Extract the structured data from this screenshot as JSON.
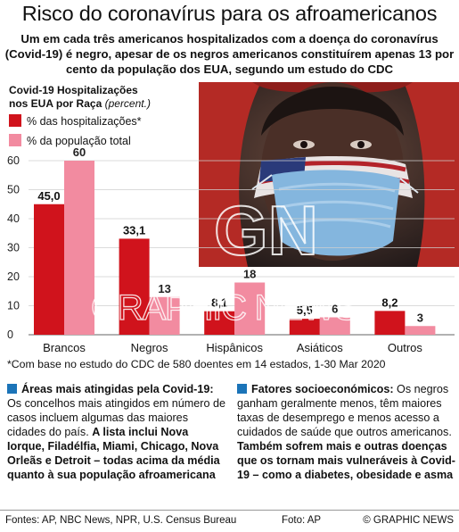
{
  "title": "Risco do coronavírus para os afroamericanos",
  "subtitle": "Um em cada três americanos hospitalizados com a doença do coronavírus (Covid-19) é negro, apesar de os negros americanos constituírem apenas 13 por cento da população dos EUA, segundo um estudo do CDC",
  "colors": {
    "hosp": "#d0131c",
    "pop": "#f28ba0",
    "accent": "#1b74b8"
  },
  "chart_data": {
    "type": "bar",
    "title_line1": "Covid-19 Hospitalizações",
    "title_line2": "nos EUA por Raça",
    "unit": "(percent.)",
    "categories": [
      "Brancos",
      "Negros",
      "Hispânicos",
      "Asiáticos",
      "Outros"
    ],
    "series": [
      {
        "name": "% das hospitalizações*",
        "values": [
          45.0,
          33.1,
          8.1,
          5.5,
          8.2
        ],
        "labels": [
          "45,0",
          "33,1",
          "8,1",
          "5,5",
          "8,2"
        ]
      },
      {
        "name": "% da população total",
        "values": [
          60,
          13,
          18,
          6,
          3
        ],
        "labels": [
          "60",
          "13",
          "18",
          "6",
          "3"
        ]
      }
    ],
    "ylim": [
      0,
      65
    ],
    "yticks": [
      0,
      10,
      20,
      30,
      40,
      50,
      60
    ],
    "grid": true,
    "legend": "top-left"
  },
  "footnote": "*Com base no estudo do CDC de 580 doentes em 14 estados, 1-30 Mar 2020",
  "left_col": {
    "head": "Áreas mais atingidas pela Covid-19:",
    "text": " Os concelhos mais atingidos em número de casos incluem algumas das maiores cidades do país. ",
    "bold": "A lista inclui Nova Iorque, Filadélfia, Miami, Chicago, Nova Orleãs e Detroit – todas acima da média quanto à sua população afroamericana"
  },
  "right_col": {
    "head": "Fatores socioeconómicos:",
    "text": " Os negros ganham geralmente menos, têm maiores taxas de desemprego e menos acesso a cuidados de saúde que outros americanos. ",
    "bold": "Também sofrem mais e outras doenças que os tornam mais vulneráveis à Covid-19 – como a diabetes, obesidade e asma"
  },
  "footer": {
    "sources": "Fontes: AP, NBC News, NPR, U.S. Census Bureau",
    "photo": "Foto: AP",
    "copyright": "© GRAPHIC NEWS"
  },
  "watermark": {
    "logo": "GN",
    "text": "GRAPHIC NEWS"
  }
}
